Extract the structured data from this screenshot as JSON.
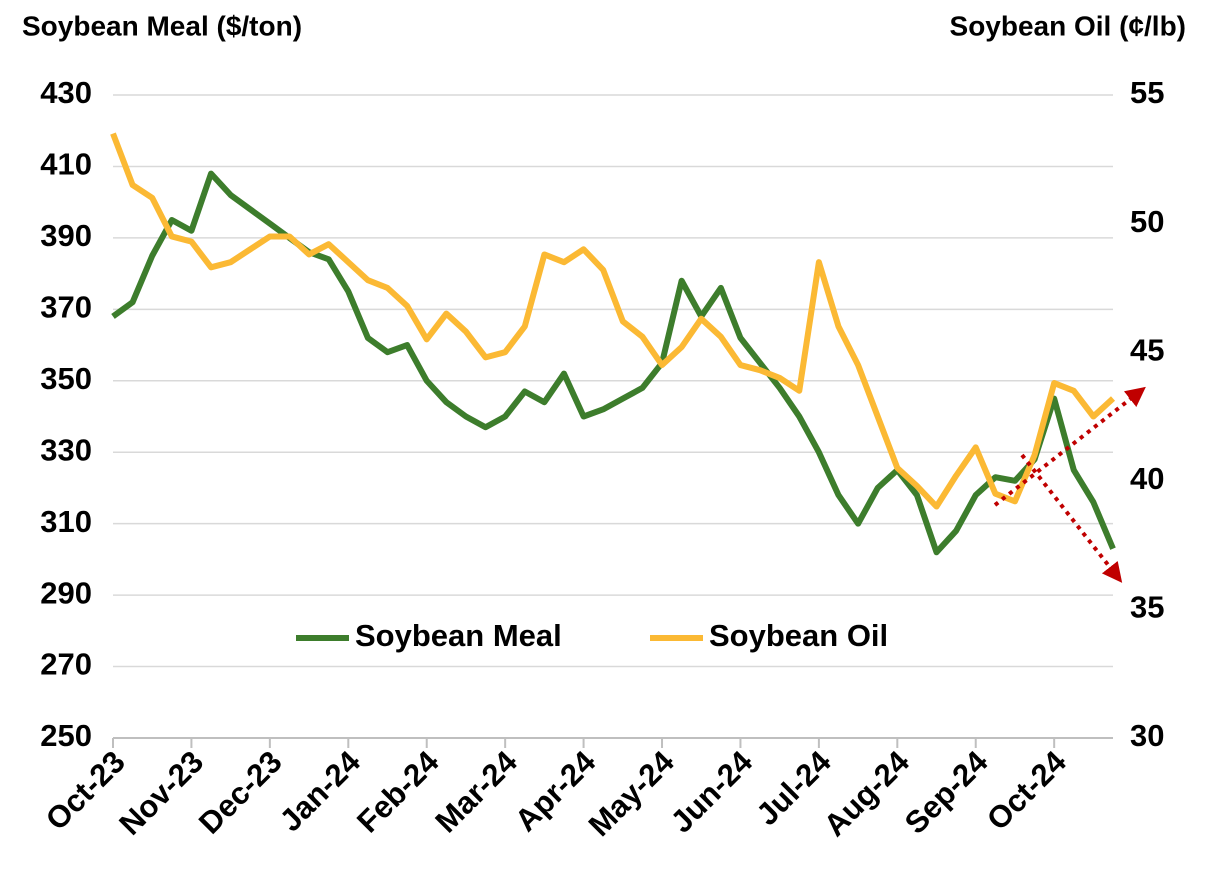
{
  "chart_data": {
    "type": "line",
    "y_label": "Soybean Meal ($/ton)",
    "y2_label": "Soybean Oil (¢/lb)",
    "categories": [
      "Oct-23",
      null,
      null,
      null,
      "Nov-23",
      null,
      null,
      null,
      "Dec-23",
      null,
      null,
      null,
      "Jan-24",
      null,
      null,
      null,
      "Feb-24",
      null,
      null,
      null,
      "Mar-24",
      null,
      null,
      null,
      "Apr-24",
      null,
      null,
      null,
      "May-24",
      null,
      null,
      null,
      "Jun-24",
      null,
      null,
      null,
      "Jul-24",
      null,
      null,
      null,
      "Aug-24",
      null,
      null,
      null,
      "Sep-24",
      null,
      null,
      null,
      "Oct-24",
      null,
      null,
      null
    ],
    "series": [
      {
        "name": "Soybean Meal",
        "color": "#3d7d2c",
        "values": [
          368,
          372,
          385,
          395,
          392,
          408,
          402,
          398,
          394,
          390,
          386,
          384,
          375,
          362,
          358,
          360,
          350,
          344,
          340,
          337,
          340,
          347,
          344,
          352,
          340,
          342,
          345,
          348,
          355,
          378,
          368,
          376,
          362,
          355,
          348,
          340,
          330,
          318,
          310,
          320,
          325,
          318,
          302,
          308,
          318,
          323,
          322,
          328,
          345,
          325,
          316,
          303
        ]
      },
      {
        "name": "Soybean Oil",
        "color": "#fbb934",
        "axis": "y2",
        "values": [
          53.5,
          51.5,
          51,
          49.5,
          49.3,
          48.3,
          48.5,
          49,
          49.5,
          49.5,
          48.8,
          49.2,
          48.5,
          47.8,
          47.5,
          46.8,
          45.5,
          46.5,
          45.8,
          44.8,
          45,
          46,
          48.8,
          48.5,
          49,
          48.2,
          46.2,
          45.6,
          44.5,
          45.2,
          46.3,
          45.6,
          44.5,
          44.3,
          44,
          43.5,
          48.5,
          46,
          44.5,
          42.5,
          40.5,
          39.8,
          39,
          40.2,
          41.3,
          39.5,
          39.2,
          41,
          43.8,
          43.5,
          42.5,
          43.2
        ]
      }
    ],
    "ylim": [
      250,
      430
    ],
    "yticks": [
      250,
      270,
      290,
      310,
      330,
      350,
      370,
      390,
      410,
      430
    ],
    "y2lim": [
      30,
      55
    ],
    "y2ticks": [
      30,
      35,
      40,
      45,
      50,
      55
    ],
    "grid": true,
    "legend": "bottom"
  }
}
